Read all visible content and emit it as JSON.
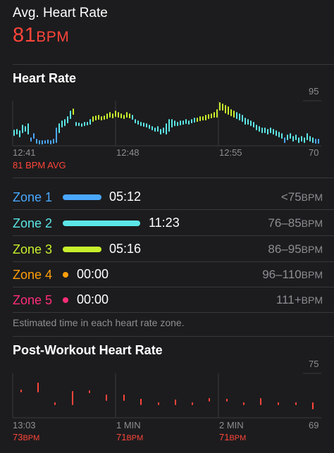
{
  "summary": {
    "avg_label": "Avg. Heart Rate",
    "avg_value": "81",
    "avg_unit": "BPM"
  },
  "heart_rate": {
    "title": "Heart Rate",
    "y_max_label": "95",
    "y_min_label": "70",
    "x_ticks": [
      "12:41",
      "12:48",
      "12:55"
    ],
    "avg_note": "81 BPM AVG"
  },
  "zones": {
    "items": [
      {
        "name": "Zone 1",
        "time": "05:12",
        "range": "<75",
        "unit": "BPM",
        "color": "#4aa8ff",
        "fraction": 0.24
      },
      {
        "name": "Zone 2",
        "time": "11:23",
        "range": "76–85",
        "unit": "BPM",
        "color": "#5ce6e6",
        "fraction": 0.52
      },
      {
        "name": "Zone 3",
        "time": "05:16",
        "range": "86–95",
        "unit": "BPM",
        "color": "#c8f02c",
        "fraction": 0.24
      },
      {
        "name": "Zone 4",
        "time": "00:00",
        "range": "96–110",
        "unit": "BPM",
        "color": "#ff9f0a",
        "fraction": 0
      },
      {
        "name": "Zone 5",
        "time": "00:00",
        "range": "111+",
        "unit": "BPM",
        "color": "#ff2d78",
        "fraction": 0
      }
    ],
    "footnote": "Estimated time in each heart rate zone."
  },
  "post_workout": {
    "title": "Post-Workout Heart Rate",
    "y_max_label": "75",
    "y_min_label": "69",
    "x_ticks": [
      "13:03",
      "1 MIN",
      "2 MIN"
    ],
    "values": [
      {
        "value": "73",
        "unit": "BPM"
      },
      {
        "value": "71",
        "unit": "BPM"
      },
      {
        "value": "71",
        "unit": "BPM"
      }
    ]
  },
  "colors": {
    "accent": "#ff453a",
    "zone1": "#4aa8ff",
    "zone2": "#5ce6e6",
    "zone3": "#c8f02c",
    "zone4": "#ff9f0a",
    "zone5": "#ff2d78"
  }
}
